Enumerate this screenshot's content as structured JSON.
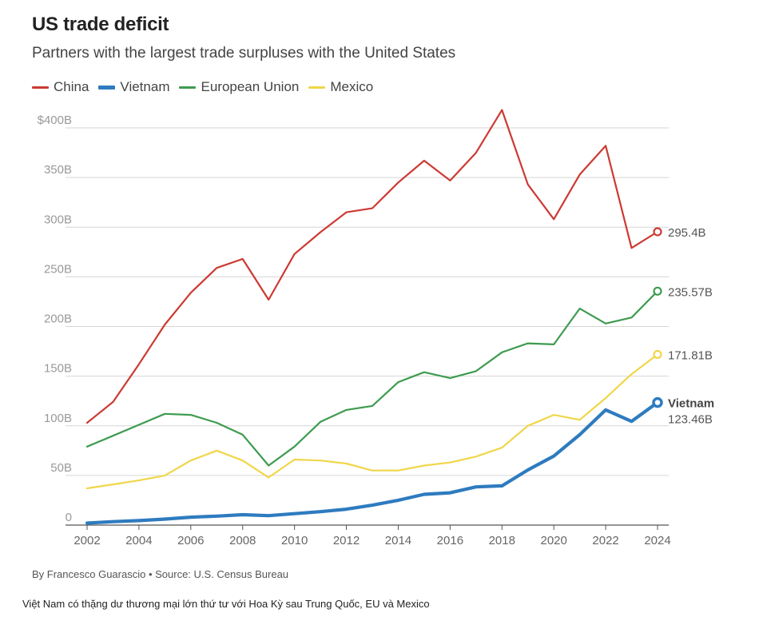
{
  "header": {
    "title": "US trade deficit",
    "subtitle": "Partners with the largest trade surpluses with the United States"
  },
  "legend": [
    {
      "label": "China",
      "color": "#cc3a33"
    },
    {
      "label": "Vietnam",
      "color": "#2e7bbf"
    },
    {
      "label": "European Union",
      "color": "#3e9b4f"
    },
    {
      "label": "Mexico",
      "color": "#f0d64a"
    }
  ],
  "footer": {
    "byline": "By Francesco Guarascio • Source: U.S. Census Bureau",
    "caption": "Việt Nam có thặng dư thương mại lớn thứ tư với Hoa Kỳ sau Trung Quốc, EU và Mexico"
  },
  "chart_data": {
    "type": "line",
    "x": [
      2002,
      2003,
      2004,
      2005,
      2006,
      2007,
      2008,
      2009,
      2010,
      2011,
      2012,
      2013,
      2014,
      2015,
      2016,
      2017,
      2018,
      2019,
      2020,
      2021,
      2022,
      2023,
      2024
    ],
    "xticks": [
      2002,
      2004,
      2006,
      2008,
      2010,
      2012,
      2014,
      2016,
      2018,
      2020,
      2022,
      2024
    ],
    "yticks": [
      0,
      50,
      100,
      150,
      200,
      250,
      300,
      350,
      400
    ],
    "ytick_labels": [
      "0",
      "50B",
      "100B",
      "150B",
      "200B",
      "250B",
      "300B",
      "350B",
      "$400B"
    ],
    "ylim": [
      0,
      400
    ],
    "grid": true,
    "legend_position": "top-left",
    "series": [
      {
        "name": "China",
        "color": "#cc3a33",
        "width": 2.2,
        "values": [
          103,
          124,
          162,
          202,
          234,
          259,
          268,
          227,
          273,
          295,
          315,
          319,
          345,
          367,
          347,
          375,
          418,
          343,
          308,
          353,
          382,
          279,
          295.4
        ],
        "end_label": "295.4B"
      },
      {
        "name": "European Union",
        "color": "#3e9b4f",
        "width": 2.2,
        "values": [
          79,
          90,
          101,
          112,
          111,
          103,
          91,
          60,
          79,
          104,
          116,
          120,
          144,
          154,
          148,
          155,
          174,
          183,
          182,
          218,
          203,
          209,
          235.57
        ],
        "end_label": "235.57B"
      },
      {
        "name": "Mexico",
        "color": "#f0d64a",
        "width": 2.2,
        "values": [
          37,
          41,
          45,
          50,
          65,
          75,
          65,
          48,
          66,
          65,
          62,
          55,
          55,
          60,
          63,
          69,
          78,
          100,
          111,
          106,
          128,
          152,
          171.81
        ],
        "end_label": "171.81B"
      },
      {
        "name": "Vietnam",
        "color": "#2e7bbf",
        "width": 4.2,
        "values": [
          2,
          3.5,
          4.5,
          6,
          8,
          9,
          10.5,
          9.5,
          11.5,
          13.5,
          16,
          20,
          25,
          31,
          32.5,
          38.5,
          39.5,
          55.5,
          69.5,
          91,
          116,
          104.5,
          123.46
        ],
        "end_label_bold": "Vietnam",
        "end_label": "123.46B"
      }
    ]
  }
}
